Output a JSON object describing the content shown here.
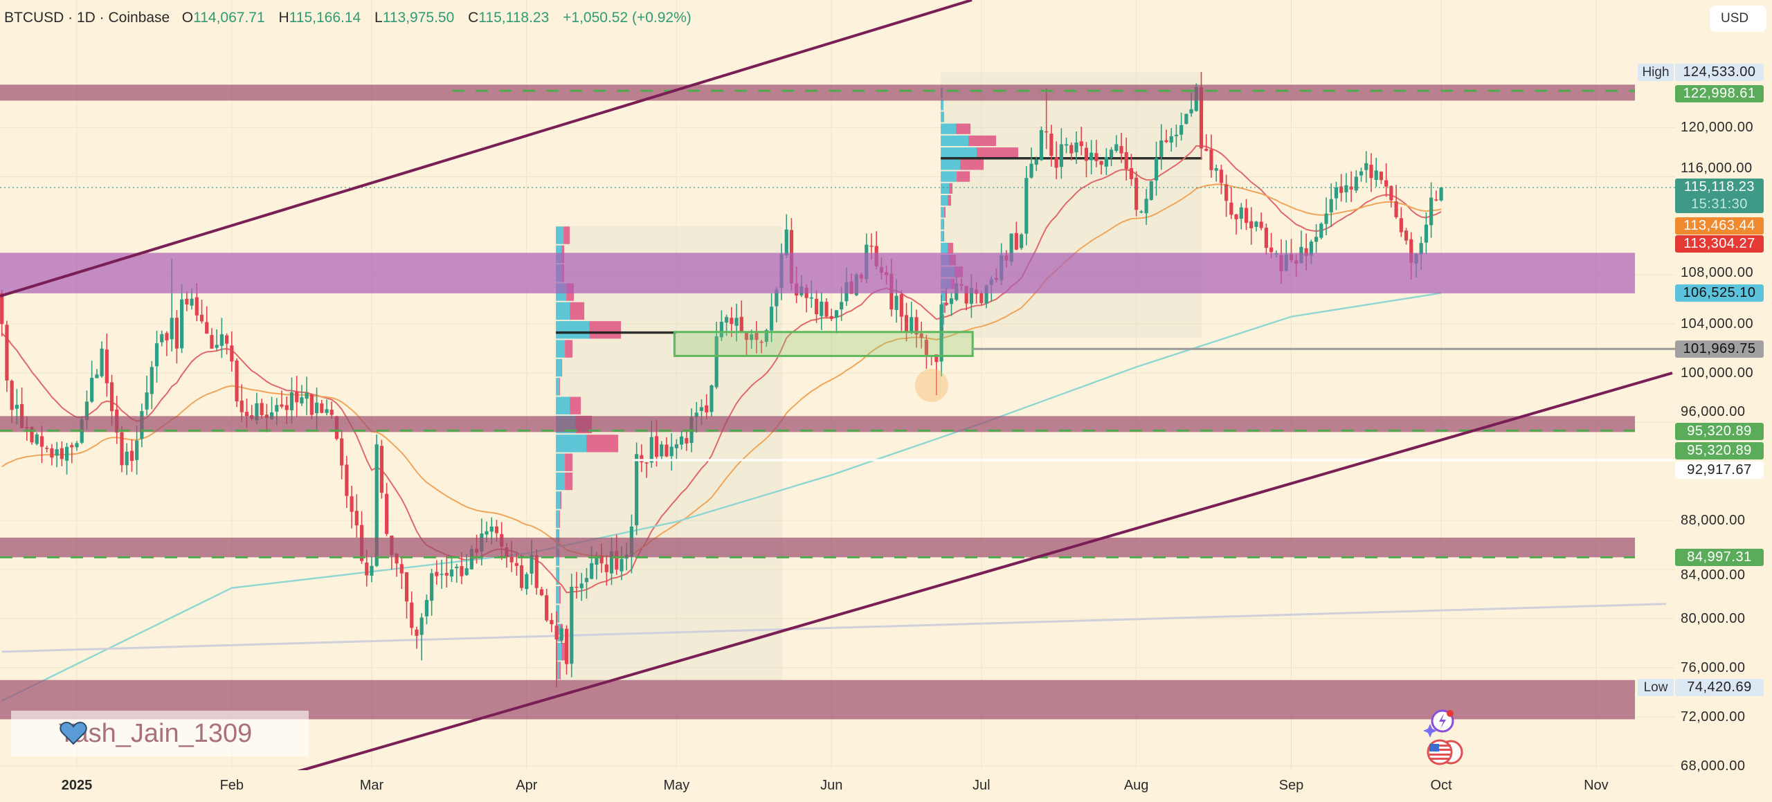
{
  "header": {
    "symbol": "BTCUSD · 1D · Coinbase",
    "o_label": "O",
    "o_value": "114,067.71",
    "h_label": "H",
    "h_value": "115,166.14",
    "l_label": "L",
    "l_value": "113,975.50",
    "c_label": "C",
    "c_value": "115,118.23",
    "change": "+1,050.52 (+0.92%)"
  },
  "currency_button": "USD",
  "watermark": {
    "text": "Yash_Jain_1309",
    "icon": "blue-heart-icon"
  },
  "event_icons": [
    "ai-spark-icon",
    "us-flag-economic-event-icon"
  ],
  "colors": {
    "background": "#fdf3dc",
    "candle_up": "#2e9d84",
    "candle_down": "#e0434f",
    "ma_fast": "#e06868",
    "ma_slow": "#f0a55a",
    "ma_long": "#8fd6d2",
    "trendline": "#7a1f55"
  },
  "price_axis": {
    "ticks": [
      "120,000.00",
      "116,000.00",
      "108,000.00",
      "104,000.00",
      "100,000.00",
      "96,000.00",
      "88,000.00",
      "84,000.00",
      "80,000.00",
      "76,000.00",
      "72,000.00",
      "68,000.00"
    ],
    "tick_values": [
      120000,
      116000,
      108000,
      104000,
      100000,
      96000,
      88000,
      84000,
      80000,
      76000,
      72000,
      68000
    ],
    "labels": [
      {
        "tag": "High",
        "text": "124,533.00",
        "value": 124533.0,
        "kind": "high"
      },
      {
        "text": "122,998.61",
        "value": 122998.61,
        "kind": "green"
      },
      {
        "text": "115,118.23",
        "sub": "15:31:30",
        "value": 115118.23,
        "kind": "last"
      },
      {
        "text": "113,463.44",
        "value": 113463.44,
        "kind": "orange"
      },
      {
        "text": "113,304.27",
        "value": 113304.27,
        "kind": "red"
      },
      {
        "text": "106,525.10",
        "value": 106525.1,
        "kind": "cyan"
      },
      {
        "text": "101,969.75",
        "value": 101969.75,
        "kind": "grey"
      },
      {
        "text": "95,320.89",
        "value": 95320.89,
        "kind": "green"
      },
      {
        "text": "95,320.89",
        "value": 95320.89,
        "kind": "green"
      },
      {
        "text": "92,917.67",
        "value": 92917.67,
        "kind": "white"
      },
      {
        "text": "84,997.31",
        "value": 84997.31,
        "kind": "green"
      },
      {
        "tag": "Low",
        "text": "74,420.69",
        "value": 74420.69,
        "kind": "low"
      }
    ]
  },
  "time_axis": {
    "labels": [
      "2025",
      "Feb",
      "Mar",
      "Apr",
      "May",
      "Jun",
      "Jul",
      "Aug",
      "Sep",
      "Oct",
      "Nov"
    ],
    "day_of_year": [
      0,
      31,
      59,
      90,
      120,
      151,
      181,
      212,
      243,
      273,
      304
    ]
  },
  "chart_data": {
    "type": "candlestick",
    "title": "BTCUSD · 1D · Coinbase",
    "xlabel": "",
    "ylabel": "USD",
    "x_unit": "days since 2025-01-01",
    "ylim": [
      68000,
      126000
    ],
    "grid": true,
    "last_candle": {
      "day": 273,
      "open": 114067.71,
      "high": 115166.14,
      "low": 113975.5,
      "close": 115118.23
    },
    "close_keypoints": [
      [
        -16,
        106500
      ],
      [
        -15,
        104000
      ],
      [
        -13,
        97000
      ],
      [
        -10,
        95500
      ],
      [
        -7,
        94000
      ],
      [
        -3,
        93000
      ],
      [
        0,
        94300
      ],
      [
        5,
        102000
      ],
      [
        7,
        96900
      ],
      [
        9,
        92500
      ],
      [
        12,
        94500
      ],
      [
        15,
        100500
      ],
      [
        19,
        104500
      ],
      [
        20,
        102000
      ],
      [
        21,
        106000
      ],
      [
        24,
        104700
      ],
      [
        27,
        102000
      ],
      [
        30,
        102400
      ],
      [
        32,
        97700
      ],
      [
        34,
        96500
      ],
      [
        40,
        97400
      ],
      [
        48,
        97600
      ],
      [
        51,
        96600
      ],
      [
        55,
        88700
      ],
      [
        57,
        84700
      ],
      [
        59,
        84300
      ],
      [
        60,
        94200
      ],
      [
        62,
        86900
      ],
      [
        68,
        78600
      ],
      [
        71,
        83700
      ],
      [
        78,
        84100
      ],
      [
        83,
        87500
      ],
      [
        89,
        82500
      ],
      [
        91,
        85200
      ],
      [
        92,
        82500
      ],
      [
        96,
        78300
      ],
      [
        97,
        79200
      ],
      [
        98,
        76300
      ],
      [
        99,
        82600
      ],
      [
        105,
        84500
      ],
      [
        110,
        85200
      ],
      [
        111,
        87500
      ],
      [
        112,
        93400
      ],
      [
        120,
        94200
      ],
      [
        126,
        96800
      ],
      [
        127,
        99000
      ],
      [
        128,
        103000
      ],
      [
        131,
        104000
      ],
      [
        138,
        103500
      ],
      [
        140,
        106800
      ],
      [
        141,
        109700
      ],
      [
        142,
        111700
      ],
      [
        143,
        107300
      ],
      [
        150,
        104600
      ],
      [
        153,
        105800
      ],
      [
        159,
        110300
      ],
      [
        160,
        108700
      ],
      [
        165,
        104600
      ],
      [
        171,
        101400
      ],
      [
        172,
        100900
      ],
      [
        173,
        105600
      ],
      [
        176,
        107300
      ],
      [
        181,
        105700
      ],
      [
        185,
        109600
      ],
      [
        189,
        111300
      ],
      [
        190,
        115900
      ],
      [
        192,
        117400
      ],
      [
        193,
        119800
      ],
      [
        195,
        117700
      ],
      [
        199,
        117900
      ],
      [
        202,
        117300
      ],
      [
        206,
        117600
      ],
      [
        209,
        117900
      ],
      [
        211,
        115800
      ],
      [
        212,
        113300
      ],
      [
        214,
        114200
      ],
      [
        216,
        117500
      ],
      [
        219,
        119300
      ],
      [
        221,
        120200
      ],
      [
        223,
        121500
      ],
      [
        224,
        123300
      ],
      [
        225,
        118300
      ],
      [
        229,
        115500
      ],
      [
        231,
        112900
      ],
      [
        233,
        113500
      ],
      [
        235,
        111800
      ],
      [
        238,
        110200
      ],
      [
        241,
        108300
      ],
      [
        243,
        109200
      ],
      [
        248,
        111100
      ],
      [
        250,
        113000
      ],
      [
        254,
        115300
      ],
      [
        256,
        116000
      ],
      [
        258,
        117100
      ],
      [
        262,
        115200
      ],
      [
        264,
        112700
      ],
      [
        267,
        109000
      ],
      [
        268,
        109700
      ],
      [
        270,
        112100
      ],
      [
        271,
        114300
      ],
      [
        272,
        114067.71
      ]
    ],
    "extremes": [
      {
        "day": 19,
        "high": 109300
      },
      {
        "day": 60,
        "high": 95000
      },
      {
        "day": 69,
        "low": 76600
      },
      {
        "day": 96,
        "low": 74420.69
      },
      {
        "day": 172,
        "low": 98200
      },
      {
        "day": 194,
        "high": 123200
      },
      {
        "day": 225,
        "high": 124533
      }
    ],
    "moving_averages": [
      {
        "name": "EMA fast",
        "period": 20,
        "seed": 102800
      },
      {
        "name": "EMA slow",
        "period": 50,
        "seed": 91300
      },
      {
        "name": "MA long",
        "points": [
          [
            -15,
            73300
          ],
          [
            31,
            82500
          ],
          [
            90,
            85300
          ],
          [
            120,
            87900
          ],
          [
            151,
            91700
          ],
          [
            181,
            95900
          ],
          [
            212,
            100500
          ],
          [
            243,
            104600
          ],
          [
            273,
            106525.1
          ]
        ]
      },
      {
        "name": "Long trend",
        "points": [
          [
            -15,
            77300
          ],
          [
            318,
            81200
          ]
        ]
      }
    ],
    "zones": [
      {
        "name": "resistance-top",
        "from": 122200,
        "to": 123500,
        "dashed_level": 122998.61
      },
      {
        "name": "purple-zone",
        "from": 106500,
        "to": 109800
      },
      {
        "name": "zone-95k",
        "from": 95200,
        "to": 96500,
        "dashed_level": 95320.89
      },
      {
        "name": "zone-85k",
        "from": 84997.31,
        "to": 86600,
        "dashed_level": 84997.31
      },
      {
        "name": "zone-low",
        "from": 71800,
        "to": 75000
      }
    ],
    "levels": [
      {
        "name": "fvg-level",
        "value": 101969.75
      },
      {
        "name": "white-level",
        "value": 92917.67
      }
    ],
    "consolidation_box": {
      "day_from": 120,
      "day_to": 178,
      "from": 101400,
      "to": 103350
    },
    "volume_profiles": [
      {
        "day_from": 96,
        "day_to": 141,
        "high": 112000,
        "low": 75000,
        "poc": 103300,
        "row_top": 112000,
        "rows": [
          [
            11,
            9
          ],
          [
            8,
            4
          ],
          [
            8,
            4
          ],
          [
            15,
            11
          ],
          [
            20,
            21
          ],
          [
            48,
            46
          ],
          [
            13,
            11
          ],
          [
            8,
            1
          ],
          [
            5,
            1
          ],
          [
            20,
            16
          ],
          [
            28,
            24
          ],
          [
            44,
            46
          ],
          [
            13,
            11
          ],
          [
            13,
            11
          ],
          [
            6,
            2
          ],
          [
            5,
            1
          ],
          [
            4,
            1
          ],
          [
            4,
            1
          ],
          [
            4,
            1
          ],
          [
            5,
            2
          ],
          [
            4,
            1
          ],
          [
            6,
            4
          ],
          [
            8,
            6
          ],
          [
            5,
            2
          ]
        ]
      },
      {
        "day_from": 173,
        "day_to": 225,
        "high": 124500,
        "low": 102900,
        "poc": 117500,
        "row_top": 123300,
        "rows": [
          [
            3,
            0
          ],
          [
            4,
            0
          ],
          [
            5,
            0
          ],
          [
            22,
            21
          ],
          [
            40,
            40
          ],
          [
            52,
            60
          ],
          [
            28,
            34
          ],
          [
            23,
            19
          ],
          [
            12,
            5
          ],
          [
            10,
            5
          ],
          [
            5,
            2
          ],
          [
            4,
            1
          ],
          [
            4,
            1
          ],
          [
            10,
            8
          ],
          [
            12,
            10
          ],
          [
            20,
            12
          ],
          [
            15,
            5
          ],
          [
            6,
            2
          ],
          [
            5,
            2
          ],
          [
            4,
            1
          ],
          [
            3,
            1
          ]
        ]
      }
    ],
    "highlight_circle": {
      "day": 172,
      "price": 99000
    }
  }
}
